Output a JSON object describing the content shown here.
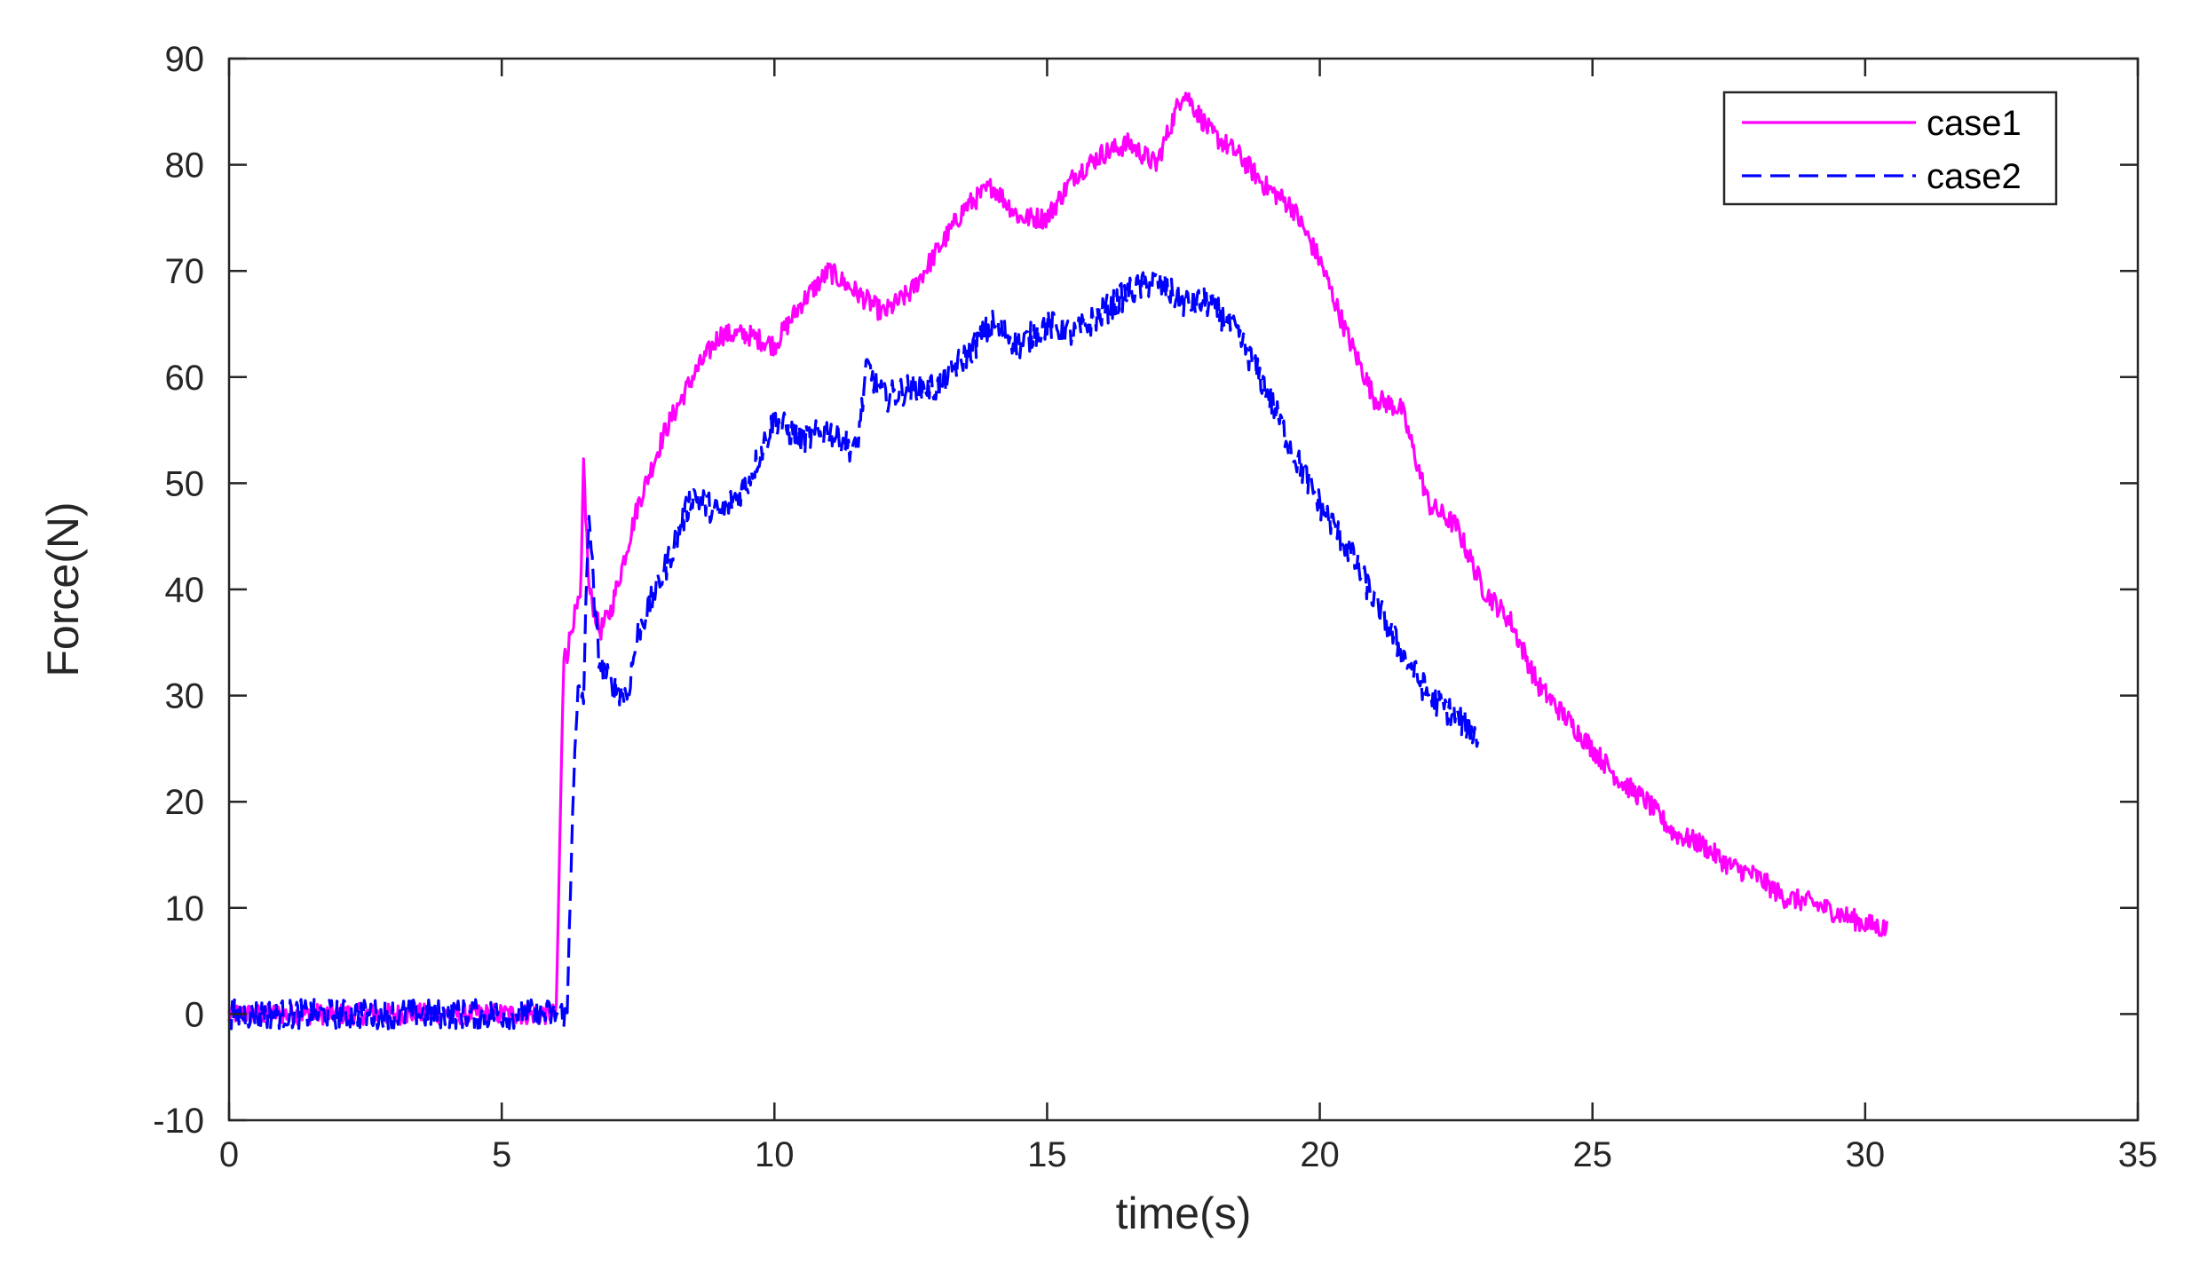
{
  "chart_data": {
    "type": "line",
    "title": "",
    "xlabel": "time(s)",
    "ylabel": "Force(N)",
    "xlim": [
      0,
      35
    ],
    "ylim": [
      -10,
      90
    ],
    "xticks": [
      0,
      5,
      10,
      15,
      20,
      25,
      30,
      35
    ],
    "yticks": [
      -10,
      0,
      10,
      20,
      30,
      40,
      50,
      60,
      70,
      80,
      90
    ],
    "grid": false,
    "legend_position": "top-right",
    "series": [
      {
        "name": "case1",
        "color": "#ff00ff",
        "line_style": "solid",
        "noise": 1.0,
        "x": [
          0,
          1,
          2,
          3,
          4,
          5,
          6.0,
          6.1,
          6.15,
          6.2,
          6.3,
          6.45,
          6.5,
          6.6,
          6.8,
          7.0,
          7.5,
          8.0,
          8.5,
          9.0,
          9.5,
          10.0,
          10.5,
          11.0,
          11.5,
          12.0,
          12.5,
          13.0,
          13.5,
          14.0,
          14.5,
          15.0,
          15.5,
          16.0,
          16.5,
          17.0,
          17.5,
          18.0,
          18.5,
          19.0,
          19.5,
          20.0,
          20.5,
          21.0,
          21.5,
          22.0,
          22.5,
          23.0,
          23.5,
          24.0,
          24.5,
          25.0,
          25.5,
          26.0,
          26.5,
          27.0,
          27.5,
          28.0,
          28.5,
          29.0,
          29.5,
          30.0,
          30.4
        ],
        "y": [
          0,
          0,
          0,
          0,
          0,
          0,
          0,
          25,
          35,
          34,
          37,
          39,
          52,
          40,
          36,
          38,
          48,
          55,
          60,
          64,
          64,
          63,
          67,
          70,
          68,
          66,
          68,
          72,
          76,
          78,
          75,
          75,
          79,
          81,
          82,
          80,
          87,
          83,
          81,
          78,
          76,
          71,
          64,
          58,
          57,
          48,
          46,
          40,
          37,
          31,
          28,
          25,
          22,
          20,
          17,
          16,
          14,
          13,
          11,
          10.5,
          9.5,
          8.5,
          8
        ]
      },
      {
        "name": "case2",
        "color": "#0000ff",
        "line_style": "dashed",
        "noise": 1.4,
        "x": [
          0,
          1,
          2,
          3,
          4,
          5,
          6.0,
          6.2,
          6.3,
          6.4,
          6.5,
          6.6,
          6.7,
          6.8,
          7.0,
          7.3,
          7.5,
          8.0,
          8.5,
          9.0,
          9.5,
          10.0,
          10.5,
          11.0,
          11.5,
          11.7,
          12.0,
          12.5,
          13.0,
          13.5,
          14.0,
          14.5,
          15.0,
          15.5,
          16.0,
          16.5,
          17.0,
          17.5,
          18.0,
          18.5,
          19.0,
          19.5,
          20.0,
          20.5,
          21.0,
          21.5,
          22.0,
          22.5,
          22.9
        ],
        "y": [
          0,
          0,
          0,
          0,
          0,
          0,
          0,
          0,
          20,
          30,
          30,
          48,
          38,
          33,
          31,
          30,
          36,
          42,
          49,
          47,
          50,
          56,
          54,
          55,
          53,
          61,
          58,
          59,
          59,
          62,
          65,
          63,
          65,
          64,
          66,
          68,
          69,
          67,
          67,
          64,
          59,
          53,
          48,
          44,
          39,
          34,
          30,
          28,
          26
        ]
      }
    ]
  }
}
